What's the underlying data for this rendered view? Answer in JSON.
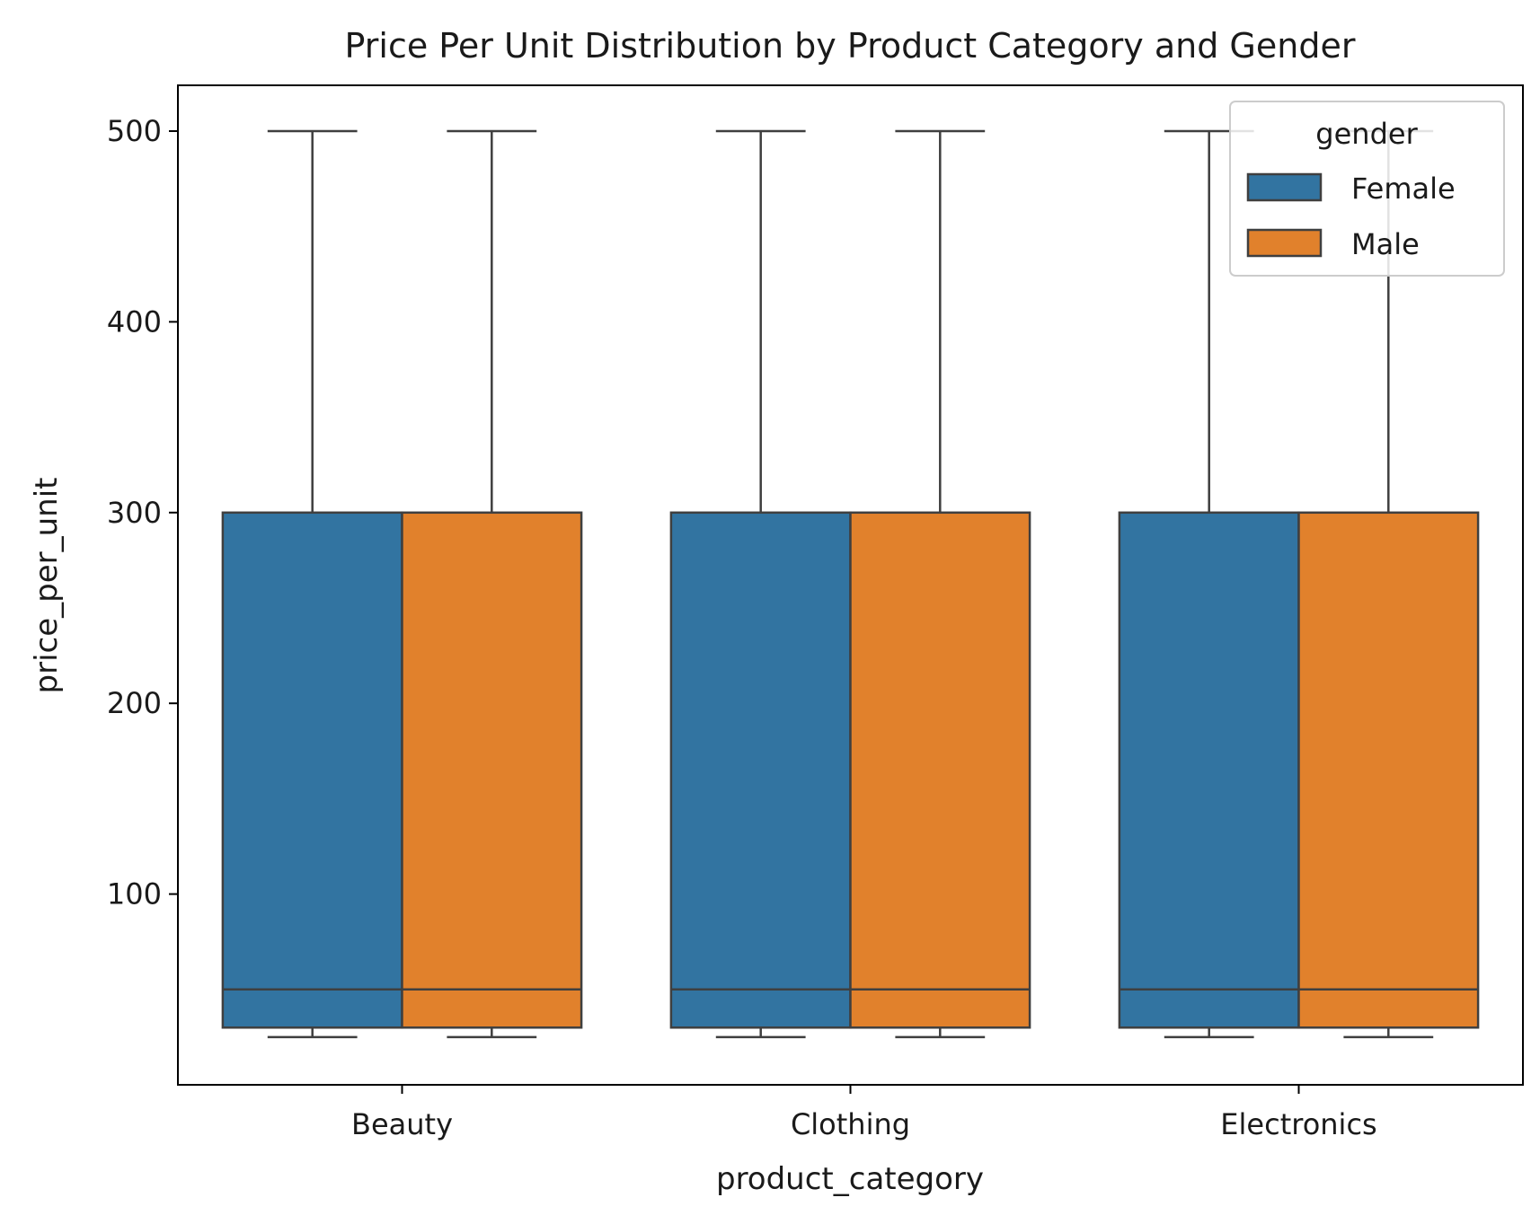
{
  "chart_data": {
    "type": "box",
    "title": "Price Per Unit Distribution by Product Category and Gender",
    "xlabel": "product_category",
    "ylabel": "price_per_unit",
    "categories": [
      "Beauty",
      "Clothing",
      "Electronics"
    ],
    "ylim": [
      0,
      524
    ],
    "yticks": [
      100,
      200,
      300,
      400,
      500
    ],
    "grid": false,
    "legend": {
      "title": "gender",
      "position": "top-right"
    },
    "series": [
      {
        "name": "Female",
        "color": "#3274a1",
        "boxes": [
          {
            "category": "Beauty",
            "whisker_low": 25,
            "q1": 30,
            "median": 50,
            "q3": 300,
            "whisker_high": 500
          },
          {
            "category": "Clothing",
            "whisker_low": 25,
            "q1": 30,
            "median": 50,
            "q3": 300,
            "whisker_high": 500
          },
          {
            "category": "Electronics",
            "whisker_low": 25,
            "q1": 30,
            "median": 50,
            "q3": 300,
            "whisker_high": 500
          }
        ]
      },
      {
        "name": "Male",
        "color": "#e1812c",
        "boxes": [
          {
            "category": "Beauty",
            "whisker_low": 25,
            "q1": 30,
            "median": 50,
            "q3": 300,
            "whisker_high": 500
          },
          {
            "category": "Clothing",
            "whisker_low": 25,
            "q1": 30,
            "median": 50,
            "q3": 300,
            "whisker_high": 500
          },
          {
            "category": "Electronics",
            "whisker_low": 25,
            "q1": 30,
            "median": 50,
            "q3": 300,
            "whisker_high": 500
          }
        ]
      }
    ],
    "line_color": "#3f3f3f"
  }
}
